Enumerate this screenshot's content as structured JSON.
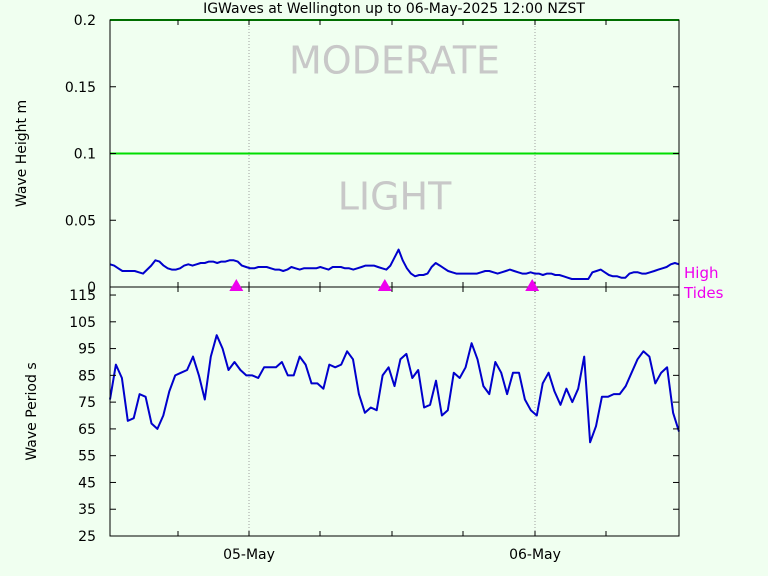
{
  "chart_data": {
    "title": "IGWaves at Wellington up to 06-May-2025 12:00 NZST",
    "x_tick_labels": [
      "05-May",
      "06-May"
    ],
    "tide_label_line1": "High",
    "tide_label_line2": "Tides",
    "tide_positions": [
      0.222,
      0.483,
      0.742
    ],
    "colors": {
      "background": "#f0fff0",
      "series": "#0000cc",
      "threshold": "#00dd00",
      "tide": "#ee00ee",
      "zone_text": "#c8c8c8",
      "grid": "#a0a0a0"
    },
    "panels": [
      {
        "type": "line",
        "ylabel": "Wave Height m",
        "ylim": [
          0,
          0.2
        ],
        "yticks": [
          0,
          0.05,
          0.1,
          0.15,
          0.2
        ],
        "ytick_labels": [
          "0",
          "0.05",
          "0.1",
          "0.15",
          "0.2"
        ],
        "thresholds": [
          0.1,
          0.2
        ],
        "zone_labels": [
          {
            "text": "MODERATE",
            "y": 0.16
          },
          {
            "text": "LIGHT",
            "y": 0.058
          }
        ],
        "values": [
          0.017,
          0.016,
          0.014,
          0.012,
          0.012,
          0.012,
          0.012,
          0.011,
          0.01,
          0.013,
          0.016,
          0.02,
          0.019,
          0.016,
          0.014,
          0.013,
          0.013,
          0.014,
          0.016,
          0.017,
          0.016,
          0.017,
          0.018,
          0.018,
          0.019,
          0.019,
          0.018,
          0.019,
          0.019,
          0.02,
          0.02,
          0.019,
          0.016,
          0.015,
          0.014,
          0.014,
          0.015,
          0.015,
          0.015,
          0.014,
          0.013,
          0.013,
          0.012,
          0.013,
          0.015,
          0.014,
          0.013,
          0.014,
          0.014,
          0.014,
          0.014,
          0.015,
          0.014,
          0.013,
          0.015,
          0.015,
          0.015,
          0.014,
          0.014,
          0.013,
          0.014,
          0.015,
          0.016,
          0.016,
          0.016,
          0.015,
          0.014,
          0.013,
          0.016,
          0.022,
          0.028,
          0.02,
          0.014,
          0.01,
          0.008,
          0.009,
          0.009,
          0.01,
          0.015,
          0.018,
          0.016,
          0.014,
          0.012,
          0.011,
          0.01,
          0.01,
          0.01,
          0.01,
          0.01,
          0.01,
          0.011,
          0.012,
          0.012,
          0.011,
          0.01,
          0.011,
          0.012,
          0.013,
          0.012,
          0.011,
          0.01,
          0.01,
          0.011,
          0.01,
          0.01,
          0.009,
          0.01,
          0.01,
          0.009,
          0.009,
          0.008,
          0.007,
          0.006,
          0.006,
          0.006,
          0.006,
          0.006,
          0.011,
          0.012,
          0.013,
          0.011,
          0.009,
          0.008,
          0.008,
          0.007,
          0.007,
          0.01,
          0.011,
          0.011,
          0.01,
          0.01,
          0.011,
          0.012,
          0.013,
          0.014,
          0.015,
          0.017,
          0.018,
          0.017
        ]
      },
      {
        "type": "line",
        "ylabel": "Wave Period s",
        "ylim": [
          25,
          118
        ],
        "yticks": [
          25,
          35,
          45,
          55,
          65,
          75,
          85,
          95,
          105,
          115
        ],
        "ytick_labels": [
          "25",
          "35",
          "45",
          "55",
          "65",
          "75",
          "85",
          "95",
          "105",
          "115"
        ],
        "values": [
          76,
          89,
          84,
          68,
          69,
          78,
          77,
          67,
          65,
          70,
          79,
          85,
          86,
          87,
          92,
          85,
          76,
          92,
          100,
          95,
          87,
          90,
          87,
          85,
          85,
          84,
          88,
          88,
          88,
          90,
          85,
          85,
          92,
          89,
          82,
          82,
          80,
          89,
          88,
          89,
          94,
          91,
          78,
          71,
          73,
          72,
          85,
          88,
          81,
          91,
          93,
          84,
          87,
          73,
          74,
          83,
          70,
          72,
          86,
          84,
          88,
          97,
          91,
          81,
          78,
          90,
          86,
          78,
          86,
          86,
          76,
          72,
          70,
          82,
          86,
          79,
          74,
          80,
          75,
          80,
          92,
          60,
          66,
          77,
          77,
          78,
          78,
          81,
          86,
          91,
          94,
          92,
          82,
          86,
          88,
          71,
          64
        ]
      }
    ]
  }
}
